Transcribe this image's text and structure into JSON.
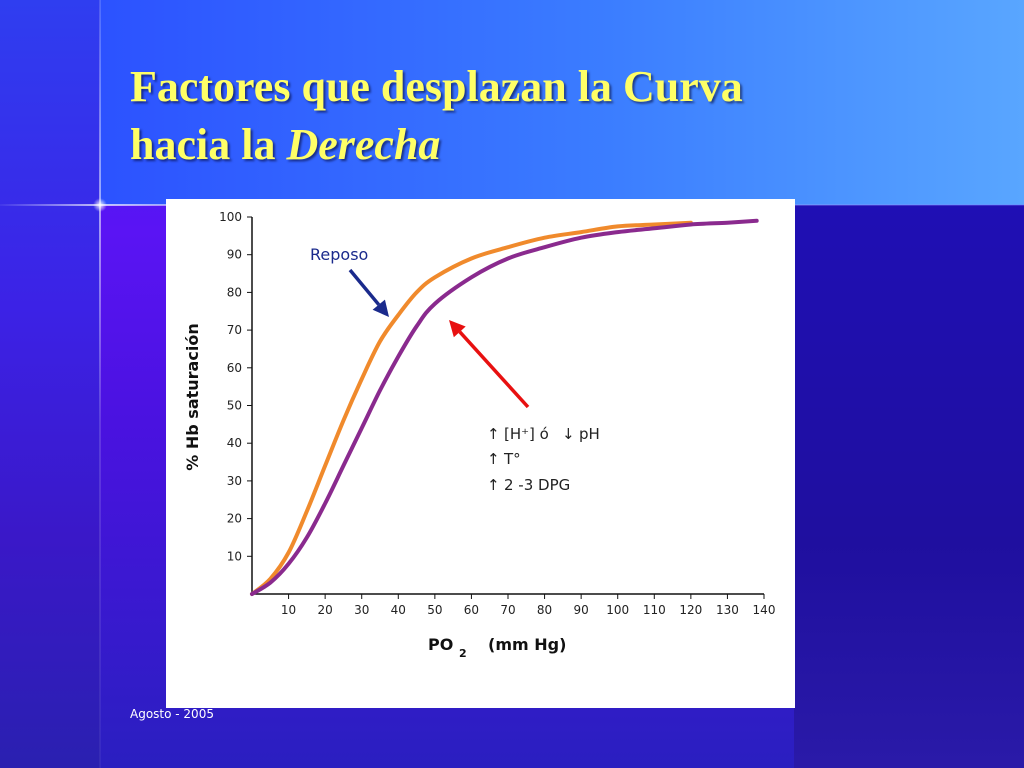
{
  "slide": {
    "title_line1": "Factores que desplazan la Curva",
    "title_line2_prefix": "hacia la ",
    "title_line2_emphasis": "Derecha",
    "footer": "Agosto - 2005"
  },
  "colors": {
    "title": "#ffff66",
    "curve_reposo": "#f08a2c",
    "curve_shifted": "#8a2a8e",
    "arrow_reposo": "#1a2a8c",
    "arrow_shift": "#e81010"
  },
  "chart_data": {
    "type": "line",
    "title": "",
    "xlabel": "PO",
    "xlabel_sub": "2",
    "xlabel_suffix": "(mm Hg)",
    "ylabel": "% Hb saturación",
    "xlim": [
      0,
      140
    ],
    "ylim": [
      0,
      100
    ],
    "x_ticks": [
      "10",
      "20",
      "30",
      "40",
      "50",
      "60",
      "70",
      "80",
      "90",
      "100",
      "110",
      "120",
      "130",
      "140"
    ],
    "y_ticks": [
      "10",
      "20",
      "30",
      "40",
      "50",
      "60",
      "70",
      "80",
      "90",
      "100"
    ],
    "grid": false,
    "series": [
      {
        "name": "Reposo",
        "color": "#f08a2c",
        "x": [
          0,
          5,
          10,
          15,
          20,
          25,
          30,
          35,
          40,
          45,
          50,
          60,
          70,
          80,
          90,
          100,
          110,
          120
        ],
        "y": [
          0,
          4,
          11,
          22,
          34,
          46,
          57,
          67,
          74,
          80,
          84,
          89,
          92,
          94.5,
          96,
          97.5,
          98,
          98.5
        ]
      },
      {
        "name": "",
        "color": "#8a2a8e",
        "x": [
          0,
          5,
          10,
          15,
          20,
          25,
          30,
          35,
          40,
          45,
          50,
          60,
          70,
          80,
          90,
          100,
          110,
          120,
          130,
          138
        ],
        "y": [
          0,
          3,
          8,
          15,
          24,
          34,
          44,
          54,
          63,
          71,
          77,
          84,
          89,
          92,
          94.5,
          96,
          97,
          98,
          98.5,
          99
        ]
      }
    ],
    "annotations": [
      {
        "label": "reposo",
        "text": "Reposo"
      },
      {
        "label": "factor1",
        "prefix": "↑",
        "text": "[H⁺] ó",
        "suffix_arrow": "↓",
        "suffix": "pH"
      },
      {
        "label": "factor2",
        "prefix": "↑",
        "text": "T°"
      },
      {
        "label": "factor3",
        "prefix": "↑",
        "text": " 2 -3 DPG"
      }
    ]
  }
}
